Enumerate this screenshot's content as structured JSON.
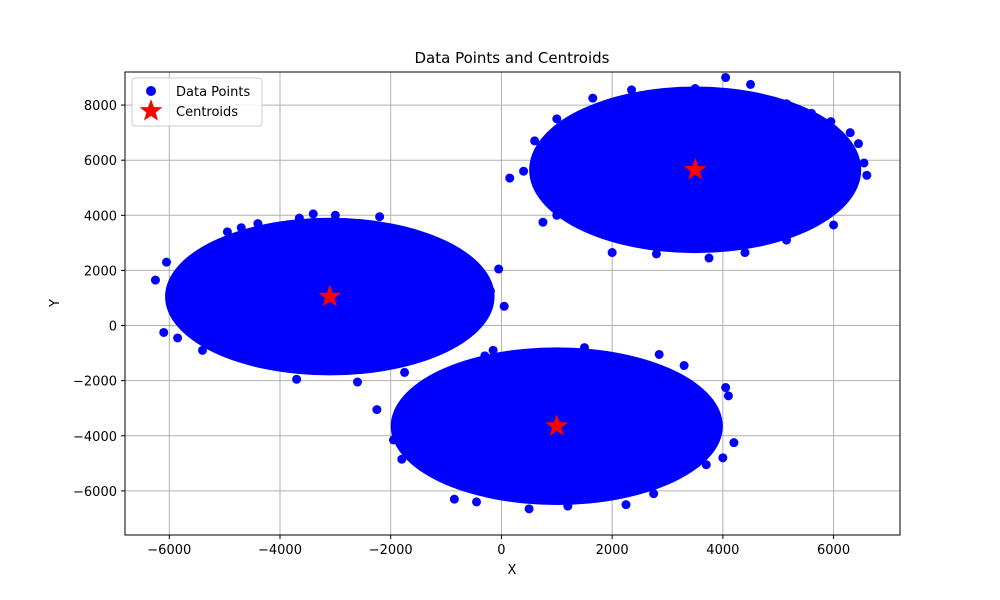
{
  "chart_data": {
    "type": "scatter",
    "title": "Data Points and Centroids",
    "xlabel": "X",
    "ylabel": "Y",
    "xlim": [
      -6800,
      7200
    ],
    "ylim": [
      -7600,
      9200
    ],
    "xticks": [
      -6000,
      -4000,
      -2000,
      0,
      2000,
      4000,
      6000
    ],
    "xtick_labels": [
      "−6000",
      "−4000",
      "−2000",
      "0",
      "2000",
      "4000",
      "6000"
    ],
    "yticks": [
      -6000,
      -4000,
      -2000,
      0,
      2000,
      4000,
      6000,
      8000
    ],
    "ytick_labels": [
      "−6000",
      "−4000",
      "−2000",
      "0",
      "2000",
      "4000",
      "6000",
      "8000"
    ],
    "grid": true,
    "legend_position": "top-left",
    "series": [
      {
        "name": "Data Points",
        "marker": "circle",
        "color": "#0000ff",
        "clusters": [
          {
            "center": [
              -3100,
              1050
            ],
            "x_range": [
              -6250,
              150
            ],
            "y_range": [
              -2100,
              4050
            ]
          },
          {
            "center": [
              3500,
              5650
            ],
            "x_range": [
              150,
              6600
            ],
            "y_range": [
              2500,
              9000
            ]
          },
          {
            "center": [
              1000,
              -3650
            ],
            "x_range": [
              -2250,
              4200
            ],
            "y_range": [
              -6800,
              -650
            ]
          }
        ],
        "points": [
          [
            -6250,
            1650
          ],
          [
            -6050,
            2300
          ],
          [
            -6100,
            -250
          ],
          [
            -5850,
            -450
          ],
          [
            -1750,
            650
          ],
          [
            -1250,
            2100
          ],
          [
            -450,
            1400
          ],
          [
            -50,
            2050
          ],
          [
            50,
            700
          ],
          [
            -200,
            1250
          ],
          [
            -3400,
            4050
          ],
          [
            -3000,
            4000
          ],
          [
            -2200,
            3950
          ],
          [
            -3650,
            3900
          ],
          [
            -2600,
            -2050
          ],
          [
            -3700,
            -1950
          ],
          [
            -1750,
            -1700
          ],
          [
            -5400,
            -900
          ],
          [
            -4950,
            3400
          ],
          [
            -4400,
            3700
          ],
          [
            -2250,
            -3050
          ],
          [
            -1950,
            -4150
          ],
          [
            -1800,
            -4850
          ],
          [
            -850,
            -6300
          ],
          [
            -450,
            -6400
          ],
          [
            500,
            -6650
          ],
          [
            1200,
            -6550
          ],
          [
            2250,
            -6500
          ],
          [
            2750,
            -6100
          ],
          [
            3700,
            -5050
          ],
          [
            4000,
            -4800
          ],
          [
            4200,
            -4250
          ],
          [
            4100,
            -2550
          ],
          [
            4050,
            -2250
          ],
          [
            3300,
            -1450
          ],
          [
            2850,
            -1050
          ],
          [
            1500,
            -800
          ],
          [
            -150,
            -900
          ],
          [
            -300,
            -1100
          ],
          [
            -400,
            -1450
          ],
          [
            150,
            5350
          ],
          [
            750,
            3750
          ],
          [
            1000,
            4000
          ],
          [
            2000,
            2650
          ],
          [
            2800,
            2600
          ],
          [
            3750,
            2450
          ],
          [
            4400,
            2650
          ],
          [
            5150,
            3100
          ],
          [
            6000,
            3650
          ],
          [
            6600,
            5450
          ],
          [
            6550,
            5900
          ],
          [
            6450,
            6600
          ],
          [
            6300,
            7000
          ],
          [
            5950,
            7400
          ],
          [
            5600,
            7700
          ],
          [
            5150,
            8050
          ],
          [
            4500,
            8750
          ],
          [
            4050,
            9000
          ],
          [
            3500,
            8600
          ],
          [
            2350,
            8550
          ],
          [
            1650,
            8250
          ],
          [
            1000,
            7500
          ],
          [
            600,
            6700
          ],
          [
            400,
            5600
          ],
          [
            5250,
            7800
          ],
          [
            3200,
            8400
          ],
          [
            2700,
            8350
          ],
          [
            -5800,
            1800
          ],
          [
            -4700,
            3550
          ],
          [
            -1500,
            2900
          ]
        ]
      },
      {
        "name": "Centroids",
        "marker": "star",
        "color": "#ff0000",
        "points": [
          [
            -3100,
            1050
          ],
          [
            3500,
            5650
          ],
          [
            1000,
            -3650
          ]
        ]
      }
    ]
  }
}
